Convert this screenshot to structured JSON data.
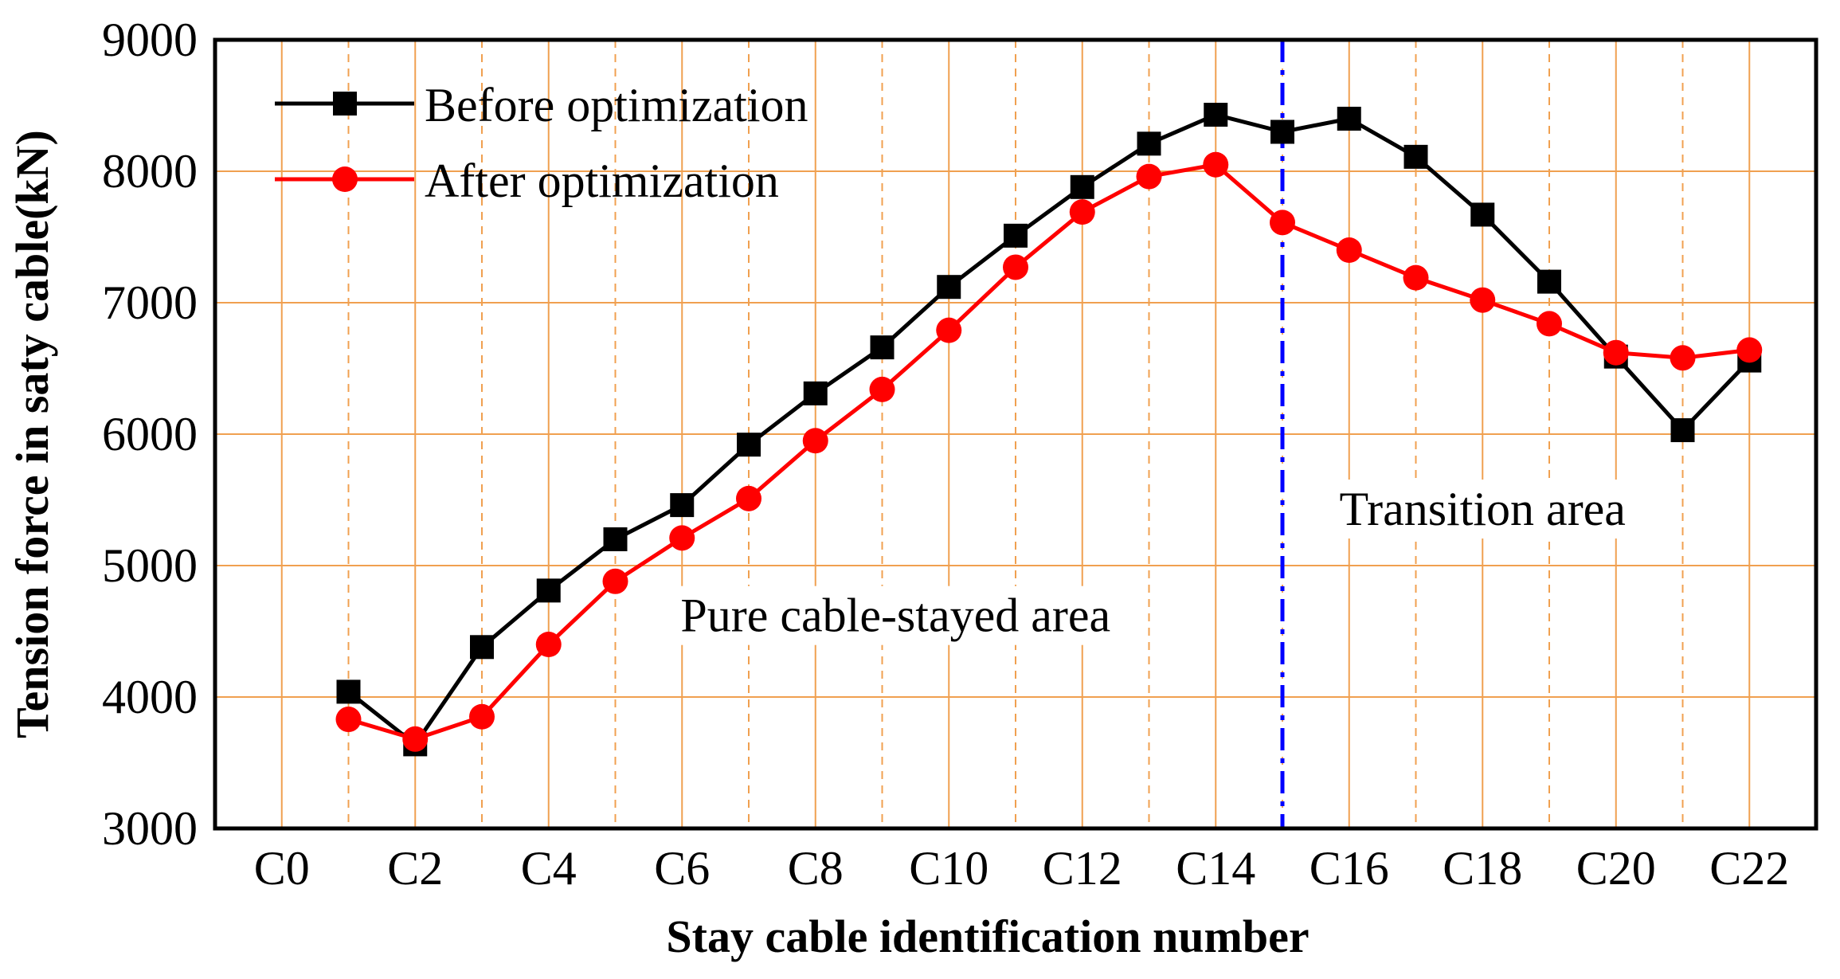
{
  "chart_data": {
    "type": "line",
    "title": "",
    "xlabel": "Stay cable identification number",
    "ylabel": "Tension force in saty cable(kN)",
    "x_tick_labels": [
      "C0",
      "C2",
      "C4",
      "C6",
      "C8",
      "C10",
      "C12",
      "C14",
      "C16",
      "C18",
      "C20",
      "C22"
    ],
    "x_tick_values": [
      0,
      2,
      4,
      6,
      8,
      10,
      12,
      14,
      16,
      18,
      20,
      22
    ],
    "xlim": [
      -1,
      23
    ],
    "ylim": [
      3000,
      9000
    ],
    "y_ticks": [
      3000,
      4000,
      5000,
      6000,
      7000,
      8000,
      9000
    ],
    "grid": true,
    "legend_position": "top-left",
    "x": [
      1,
      2,
      3,
      4,
      5,
      6,
      7,
      8,
      9,
      10,
      11,
      12,
      13,
      14,
      15,
      16,
      17,
      18,
      19,
      20,
      21,
      22
    ],
    "series": [
      {
        "name": "Before optimization",
        "color": "#000000",
        "marker": "square",
        "values": [
          4040,
          3640,
          4380,
          4810,
          5200,
          5460,
          5920,
          6310,
          6660,
          7120,
          7510,
          7880,
          8210,
          8430,
          8300,
          8400,
          8110,
          7670,
          7160,
          6590,
          6030,
          6560
        ]
      },
      {
        "name": "After optimization",
        "color": "#ff0000",
        "marker": "circle",
        "values": [
          3830,
          3680,
          3850,
          4400,
          4880,
          5210,
          5510,
          5950,
          6340,
          6790,
          7270,
          7690,
          7960,
          8050,
          7610,
          7400,
          7190,
          7020,
          6840,
          6620,
          6580,
          6640
        ]
      }
    ],
    "divider": {
      "x": 15,
      "color": "#0000ff",
      "style": "dash-dot"
    },
    "annotations": [
      {
        "text": "Pure cable-stayed area",
        "x": 9.2,
        "y": 4620
      },
      {
        "text": "Transition area",
        "x": 18.0,
        "y": 5430
      }
    ],
    "grid_color": "#f0a050"
  }
}
